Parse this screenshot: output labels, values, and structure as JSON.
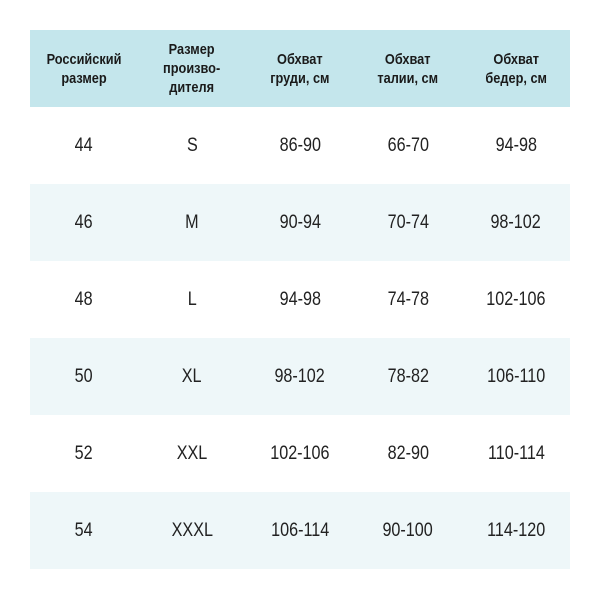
{
  "table": {
    "headers": [
      "Российский\nразмер",
      "Размер\nпроизво-\nдителя",
      "Обхват\nгруди, см",
      "Обхват\nталии, см",
      "Обхват\nбедер, см"
    ],
    "rows": [
      [
        "44",
        "S",
        "86-90",
        "66-70",
        "94-98"
      ],
      [
        "46",
        "M",
        "90-94",
        "70-74",
        "98-102"
      ],
      [
        "48",
        "L",
        "94-98",
        "74-78",
        "102-106"
      ],
      [
        "50",
        "XL",
        "98-102",
        "78-82",
        "106-110"
      ],
      [
        "52",
        "XXL",
        "102-106",
        "82-90",
        "110-114"
      ],
      [
        "54",
        "XXXL",
        "106-114",
        "90-100",
        "114-120"
      ]
    ]
  },
  "colors": {
    "header_bg": "#c4e6ec",
    "alt_row_bg": "#eef7f9"
  }
}
